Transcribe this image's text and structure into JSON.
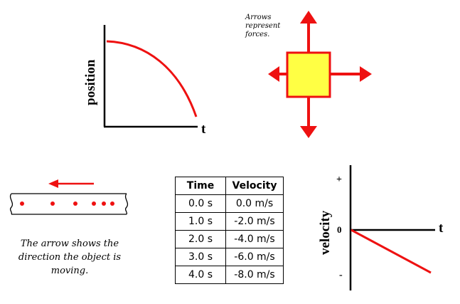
{
  "position_graph": {
    "y_label": "position",
    "x_label": "t"
  },
  "force_diagram": {
    "note_lines": [
      "Arrows",
      "represent",
      "forces."
    ],
    "box_color": "#ffff44",
    "arrow_color": "#ee1111"
  },
  "motion_diagram": {
    "caption": "The arrow shows the direction the object is moving.",
    "dots": 6
  },
  "table": {
    "headers": [
      "Time",
      "Velocity"
    ],
    "rows": [
      [
        "0.0 s",
        "0.0 m/s"
      ],
      [
        "1.0 s",
        "-2.0 m/s"
      ],
      [
        "2.0 s",
        "-4.0 m/s"
      ],
      [
        "3.0 s",
        "-6.0 m/s"
      ],
      [
        "4.0 s",
        "-8.0 m/s"
      ]
    ]
  },
  "velocity_graph": {
    "y_label": "velocity",
    "x_label": "t",
    "plus_label": "+",
    "zero_label": "0",
    "minus_label": "-"
  },
  "colors": {
    "accent": "#ee1111",
    "axes": "#000000"
  }
}
